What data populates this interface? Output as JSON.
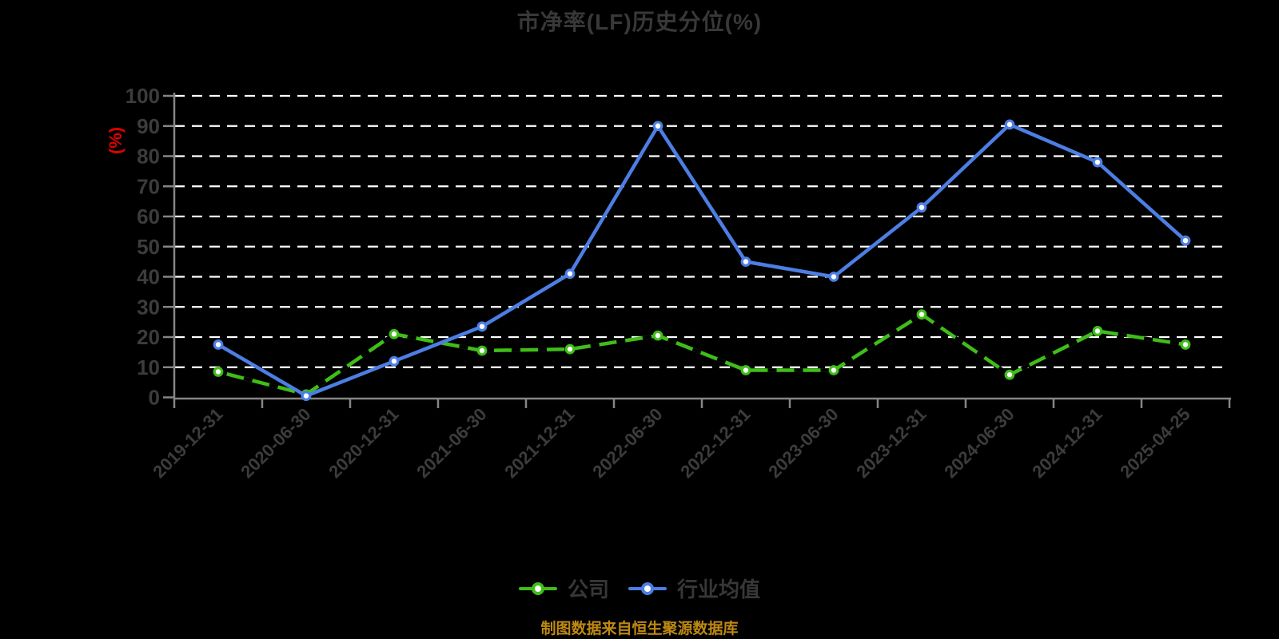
{
  "caption": "制图数据来自恒生聚源数据库",
  "legend": [
    {
      "label": "公司",
      "color": "#3FBE19"
    },
    {
      "label": "行业均值",
      "color": "#4C7EE4"
    }
  ],
  "colors": {
    "background": "#000000",
    "title_text": "#383838",
    "axis_text": "#3C3C3C",
    "axis_line": "#858585",
    "grid_line": "#FFFFFF",
    "ylabel_red": "#E10000",
    "caption_gold": "#BE8912",
    "legend_text": "#373737",
    "marker_fill": "#FFFFFF",
    "company_dash_overlay": "#000000"
  },
  "chart_data": {
    "type": "line",
    "title": "市净率(LF)历史分位(%)",
    "xlabel": "",
    "ylabel": "(%)",
    "ylim": [
      0,
      100
    ],
    "y_ticks": [
      0,
      10,
      20,
      30,
      40,
      50,
      60,
      70,
      80,
      90,
      100
    ],
    "grid": "horizontal-dashed-white",
    "legend_position": "bottom",
    "x_label_rotation": -45,
    "categories": [
      "2019-12-31",
      "2020-06-30",
      "2020-12-31",
      "2021-06-30",
      "2021-12-31",
      "2022-06-30",
      "2022-12-31",
      "2023-06-30",
      "2023-12-31",
      "2024-06-30",
      "2024-12-31",
      "2025-04-25"
    ],
    "series": [
      {
        "name": "公司",
        "color": "#3FBE19",
        "line_style": "solid-with-black-dash-overlay",
        "marker": "circle-white-fill",
        "values": [
          8.5,
          1,
          21,
          15.5,
          16,
          20.5,
          9,
          9,
          27.5,
          7.5,
          22,
          17.5
        ]
      },
      {
        "name": "行业均值",
        "color": "#4C7EE4",
        "line_style": "solid",
        "marker": "circle-white-fill",
        "values": [
          17.5,
          0.5,
          12,
          23.5,
          41,
          90,
          45,
          40,
          63,
          90.5,
          78,
          52
        ]
      }
    ]
  }
}
